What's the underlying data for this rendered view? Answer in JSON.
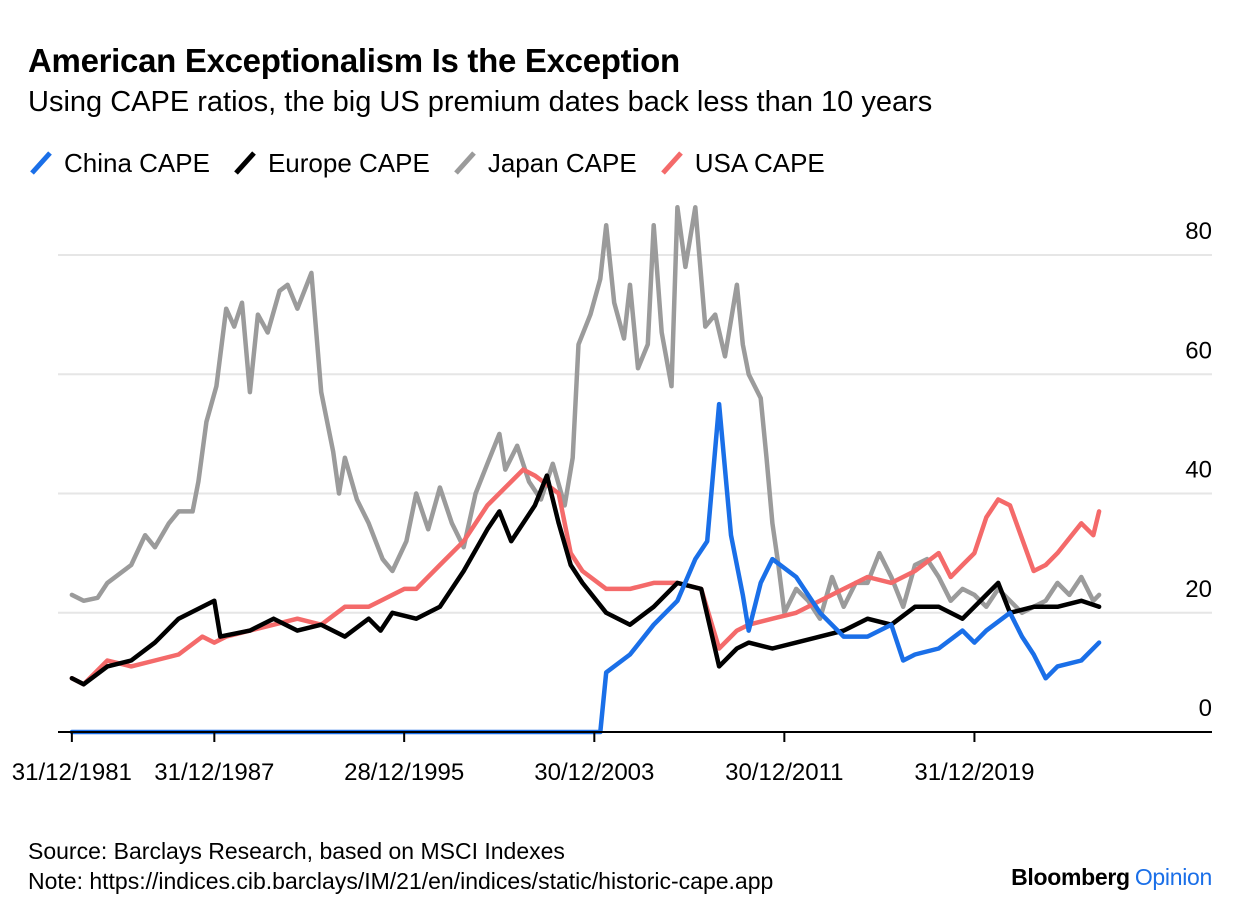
{
  "chart_data": {
    "type": "line",
    "title": "American Exceptionalism Is the Exception",
    "subtitle": "Using CAPE ratios, the big US premium dates back less than 10 years",
    "xlabel": "",
    "ylabel": "",
    "ylim": [
      0,
      90
    ],
    "xlim": [
      "1981-06-01",
      "2029-12-31"
    ],
    "y_ticks": [
      0,
      20,
      40,
      60,
      80
    ],
    "x_ticks": [
      "31/12/1981",
      "31/12/1987",
      "28/12/1995",
      "30/12/2003",
      "30/12/2011",
      "31/12/2019"
    ],
    "x_tick_dates": [
      "1981-12-31",
      "1987-12-31",
      "1995-12-28",
      "2003-12-30",
      "2011-12-30",
      "2019-12-31"
    ],
    "grid": "horizontal",
    "legend_position": "top-left",
    "series": [
      {
        "name": "Japan CAPE",
        "color": "#9b9b9b",
        "points": [
          [
            "1981-12-31",
            23
          ],
          [
            "1982-06-30",
            22
          ],
          [
            "1983-01-31",
            22.5
          ],
          [
            "1983-06-30",
            25
          ],
          [
            "1984-06-30",
            28
          ],
          [
            "1985-01-31",
            33
          ],
          [
            "1985-06-30",
            31
          ],
          [
            "1986-01-31",
            35
          ],
          [
            "1986-06-30",
            37
          ],
          [
            "1987-01-31",
            37
          ],
          [
            "1987-04-30",
            42
          ],
          [
            "1987-08-31",
            52
          ],
          [
            "1988-01-31",
            58
          ],
          [
            "1988-06-30",
            71
          ],
          [
            "1988-10-31",
            68
          ],
          [
            "1989-02-28",
            72
          ],
          [
            "1989-06-30",
            57
          ],
          [
            "1989-10-31",
            70
          ],
          [
            "1990-03-31",
            67
          ],
          [
            "1990-09-30",
            74
          ],
          [
            "1991-01-31",
            75
          ],
          [
            "1991-06-30",
            71
          ],
          [
            "1992-01-31",
            77
          ],
          [
            "1992-06-30",
            57
          ],
          [
            "1992-12-31",
            47
          ],
          [
            "1993-03-31",
            40
          ],
          [
            "1993-06-30",
            46
          ],
          [
            "1993-12-31",
            39
          ],
          [
            "1994-06-30",
            35
          ],
          [
            "1995-01-31",
            29
          ],
          [
            "1995-06-30",
            27
          ],
          [
            "1996-01-31",
            32
          ],
          [
            "1996-06-30",
            40
          ],
          [
            "1996-12-31",
            34
          ],
          [
            "1997-06-30",
            41
          ],
          [
            "1997-12-31",
            35
          ],
          [
            "1998-06-30",
            31
          ],
          [
            "1998-12-31",
            40
          ],
          [
            "1999-06-30",
            45
          ],
          [
            "1999-12-31",
            50
          ],
          [
            "2000-03-31",
            44
          ],
          [
            "2000-09-30",
            48
          ],
          [
            "2001-03-31",
            42
          ],
          [
            "2001-09-30",
            39
          ],
          [
            "2002-03-31",
            45
          ],
          [
            "2002-09-30",
            38
          ],
          [
            "2003-01-31",
            46
          ],
          [
            "2003-04-30",
            65
          ],
          [
            "2003-10-31",
            70
          ],
          [
            "2004-03-31",
            76
          ],
          [
            "2004-06-30",
            85
          ],
          [
            "2004-10-31",
            72
          ],
          [
            "2005-03-31",
            66
          ],
          [
            "2005-06-30",
            75
          ],
          [
            "2005-10-31",
            61
          ],
          [
            "2006-03-31",
            65
          ],
          [
            "2006-06-30",
            85
          ],
          [
            "2006-10-31",
            67
          ],
          [
            "2007-03-31",
            58
          ],
          [
            "2007-06-30",
            88
          ],
          [
            "2007-10-31",
            78
          ],
          [
            "2008-03-31",
            88
          ],
          [
            "2008-08-31",
            68
          ],
          [
            "2009-01-31",
            70
          ],
          [
            "2009-06-30",
            63
          ],
          [
            "2009-12-31",
            75
          ],
          [
            "2010-03-31",
            65
          ],
          [
            "2010-06-30",
            60
          ],
          [
            "2010-12-31",
            56
          ],
          [
            "2011-03-31",
            46
          ],
          [
            "2011-06-30",
            35
          ],
          [
            "2011-09-30",
            28
          ],
          [
            "2011-12-31",
            20
          ],
          [
            "2012-06-30",
            24
          ],
          [
            "2012-12-31",
            22
          ],
          [
            "2013-06-30",
            19
          ],
          [
            "2013-12-31",
            26
          ],
          [
            "2014-06-30",
            21
          ],
          [
            "2014-12-31",
            25
          ],
          [
            "2015-06-30",
            25
          ],
          [
            "2015-12-31",
            30
          ],
          [
            "2016-06-30",
            26
          ],
          [
            "2016-12-31",
            21
          ],
          [
            "2017-06-30",
            28
          ],
          [
            "2017-12-31",
            29
          ],
          [
            "2018-06-30",
            26
          ],
          [
            "2018-12-31",
            22
          ],
          [
            "2019-06-30",
            24
          ],
          [
            "2019-12-31",
            23
          ],
          [
            "2020-06-30",
            21
          ],
          [
            "2020-12-31",
            24
          ],
          [
            "2021-06-30",
            22
          ],
          [
            "2021-12-31",
            20
          ],
          [
            "2022-06-30",
            21
          ],
          [
            "2022-12-31",
            22
          ],
          [
            "2023-06-30",
            25
          ],
          [
            "2023-12-31",
            23
          ],
          [
            "2024-06-30",
            26
          ],
          [
            "2024-12-31",
            22
          ],
          [
            "2025-03-31",
            23
          ]
        ]
      },
      {
        "name": "USA CAPE",
        "color": "#f46a6a",
        "points": [
          [
            "1981-12-31",
            9
          ],
          [
            "1982-06-30",
            8
          ],
          [
            "1982-12-31",
            10
          ],
          [
            "1983-06-30",
            12
          ],
          [
            "1984-06-30",
            11
          ],
          [
            "1985-06-30",
            12
          ],
          [
            "1986-06-30",
            13
          ],
          [
            "1987-06-30",
            16
          ],
          [
            "1987-12-31",
            15
          ],
          [
            "1988-06-30",
            16
          ],
          [
            "1989-06-30",
            17
          ],
          [
            "1990-06-30",
            18
          ],
          [
            "1991-06-30",
            19
          ],
          [
            "1992-06-30",
            18
          ],
          [
            "1993-06-30",
            21
          ],
          [
            "1994-06-30",
            21
          ],
          [
            "1995-06-30",
            23
          ],
          [
            "1995-12-31",
            24
          ],
          [
            "1996-06-30",
            24
          ],
          [
            "1997-06-30",
            28
          ],
          [
            "1998-06-30",
            32
          ],
          [
            "1999-06-30",
            38
          ],
          [
            "2000-06-30",
            42
          ],
          [
            "2000-12-31",
            44
          ],
          [
            "2001-06-30",
            43
          ],
          [
            "2002-06-30",
            40
          ],
          [
            "2002-12-31",
            30
          ],
          [
            "2003-06-30",
            27
          ],
          [
            "2004-06-30",
            24
          ],
          [
            "2005-06-30",
            24
          ],
          [
            "2006-06-30",
            25
          ],
          [
            "2007-06-30",
            25
          ],
          [
            "2008-06-30",
            24
          ],
          [
            "2009-03-31",
            14
          ],
          [
            "2009-12-31",
            17
          ],
          [
            "2010-06-30",
            18
          ],
          [
            "2011-06-30",
            19
          ],
          [
            "2012-06-30",
            20
          ],
          [
            "2013-06-30",
            22
          ],
          [
            "2014-06-30",
            24
          ],
          [
            "2015-06-30",
            26
          ],
          [
            "2016-06-30",
            25
          ],
          [
            "2017-06-30",
            27
          ],
          [
            "2018-06-30",
            30
          ],
          [
            "2018-12-31",
            26
          ],
          [
            "2019-06-30",
            28
          ],
          [
            "2019-12-31",
            30
          ],
          [
            "2020-06-30",
            36
          ],
          [
            "2020-12-31",
            39
          ],
          [
            "2021-06-30",
            38
          ],
          [
            "2022-06-30",
            27
          ],
          [
            "2022-12-31",
            28
          ],
          [
            "2023-06-30",
            30
          ],
          [
            "2024-06-30",
            35
          ],
          [
            "2024-12-31",
            33
          ],
          [
            "2025-03-31",
            37
          ]
        ]
      },
      {
        "name": "Europe CAPE",
        "color": "#000000",
        "points": [
          [
            "1981-12-31",
            9
          ],
          [
            "1982-06-30",
            8
          ],
          [
            "1983-06-30",
            11
          ],
          [
            "1984-06-30",
            12
          ],
          [
            "1985-06-30",
            15
          ],
          [
            "1986-06-30",
            19
          ],
          [
            "1987-06-30",
            21
          ],
          [
            "1987-12-31",
            22
          ],
          [
            "1988-03-31",
            16
          ],
          [
            "1989-06-30",
            17
          ],
          [
            "1990-06-30",
            19
          ],
          [
            "1990-12-31",
            18
          ],
          [
            "1991-06-30",
            17
          ],
          [
            "1992-06-30",
            18
          ],
          [
            "1993-06-30",
            16
          ],
          [
            "1994-06-30",
            19
          ],
          [
            "1994-12-31",
            17
          ],
          [
            "1995-06-30",
            20
          ],
          [
            "1996-06-30",
            19
          ],
          [
            "1997-06-30",
            21
          ],
          [
            "1998-06-30",
            27
          ],
          [
            "1999-06-30",
            34
          ],
          [
            "1999-12-31",
            37
          ],
          [
            "2000-06-30",
            32
          ],
          [
            "2001-06-30",
            38
          ],
          [
            "2001-12-31",
            43
          ],
          [
            "2002-06-30",
            35
          ],
          [
            "2002-12-31",
            28
          ],
          [
            "2003-06-30",
            25
          ],
          [
            "2004-06-30",
            20
          ],
          [
            "2005-06-30",
            18
          ],
          [
            "2006-06-30",
            21
          ],
          [
            "2007-06-30",
            25
          ],
          [
            "2008-06-30",
            24
          ],
          [
            "2009-03-31",
            11
          ],
          [
            "2009-12-31",
            14
          ],
          [
            "2010-06-30",
            15
          ],
          [
            "2011-06-30",
            14
          ],
          [
            "2012-06-30",
            15
          ],
          [
            "2013-06-30",
            16
          ],
          [
            "2014-06-30",
            17
          ],
          [
            "2015-06-30",
            19
          ],
          [
            "2016-06-30",
            18
          ],
          [
            "2017-06-30",
            21
          ],
          [
            "2018-06-30",
            21
          ],
          [
            "2019-06-30",
            19
          ],
          [
            "2019-12-31",
            21
          ],
          [
            "2020-06-30",
            23
          ],
          [
            "2020-12-31",
            25
          ],
          [
            "2021-06-30",
            20
          ],
          [
            "2022-06-30",
            21
          ],
          [
            "2023-06-30",
            21
          ],
          [
            "2024-06-30",
            22
          ],
          [
            "2025-03-31",
            21
          ]
        ]
      },
      {
        "name": "China CAPE",
        "color": "#1a6fe8",
        "points": [
          [
            "1981-12-31",
            0
          ],
          [
            "2004-03-31",
            0
          ],
          [
            "2004-06-30",
            10
          ],
          [
            "2005-06-30",
            13
          ],
          [
            "2006-06-30",
            18
          ],
          [
            "2007-06-30",
            22
          ],
          [
            "2008-03-31",
            29
          ],
          [
            "2008-09-30",
            32
          ],
          [
            "2009-03-31",
            55
          ],
          [
            "2009-09-30",
            33
          ],
          [
            "2010-03-31",
            23
          ],
          [
            "2010-06-30",
            17
          ],
          [
            "2010-12-31",
            25
          ],
          [
            "2011-06-30",
            29
          ],
          [
            "2012-06-30",
            26
          ],
          [
            "2013-06-30",
            20
          ],
          [
            "2014-06-30",
            16
          ],
          [
            "2015-06-30",
            16
          ],
          [
            "2016-06-30",
            18
          ],
          [
            "2016-12-31",
            12
          ],
          [
            "2017-06-30",
            13
          ],
          [
            "2018-06-30",
            14
          ],
          [
            "2019-06-30",
            17
          ],
          [
            "2019-12-31",
            15
          ],
          [
            "2020-06-30",
            17
          ],
          [
            "2021-06-30",
            20
          ],
          [
            "2021-12-31",
            16
          ],
          [
            "2022-06-30",
            13
          ],
          [
            "2022-12-31",
            9
          ],
          [
            "2023-06-30",
            11
          ],
          [
            "2024-06-30",
            12
          ],
          [
            "2025-03-31",
            15
          ]
        ]
      }
    ]
  },
  "legend": [
    {
      "label": "China CAPE",
      "color": "#1a6fe8"
    },
    {
      "label": "Europe CAPE",
      "color": "#000000"
    },
    {
      "label": "Japan CAPE",
      "color": "#9b9b9b"
    },
    {
      "label": "USA CAPE",
      "color": "#f46a6a"
    }
  ],
  "footer": {
    "source": "Source: Barclays Research, based on MSCI Indexes",
    "note": "Note: https://indices.cib.barclays/IM/21/en/indices/static/historic-cape.app",
    "brand_primary": "Bloomberg",
    "brand_secondary": "Opinion"
  }
}
